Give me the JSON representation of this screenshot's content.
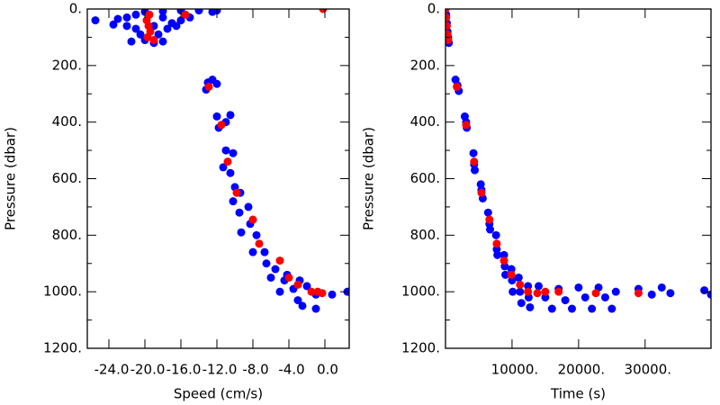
{
  "chart_data": [
    {
      "type": "scatter",
      "xlabel": "Speed (cm/s)",
      "ylabel": "Pressure (dbar)",
      "xlim": [
        -26.4,
        2.7
      ],
      "ylim": [
        1200,
        0
      ],
      "xticks": [
        {
          "value": -24,
          "label": "-24.0"
        },
        {
          "value": -20,
          "label": "-20.0"
        },
        {
          "value": -16,
          "label": "-16.0"
        },
        {
          "value": -12,
          "label": "-12.0"
        },
        {
          "value": -8,
          "label": "-8.0"
        },
        {
          "value": -4,
          "label": "-4.0"
        },
        {
          "value": 0,
          "label": "0.0"
        }
      ],
      "yticks": [
        {
          "value": 0,
          "label": "0."
        },
        {
          "value": 200,
          "label": "200."
        },
        {
          "value": 400,
          "label": "400."
        },
        {
          "value": 600,
          "label": "600."
        },
        {
          "value": 800,
          "label": "800."
        },
        {
          "value": 1000,
          "label": "1000."
        },
        {
          "value": 1200,
          "label": "1200."
        }
      ],
      "series": [
        {
          "color": "#0000ff",
          "x": [
            -25.5,
            -23,
            -22,
            -21,
            -20,
            -18,
            -16,
            -14,
            -12,
            -12.5,
            -23.5,
            -22,
            -21,
            -20.5,
            -20,
            -19,
            -18,
            -18.5,
            -17.5,
            -17,
            -16,
            -15,
            -16.5,
            -21.5,
            -19,
            -18,
            -13,
            -12.5,
            -13.2,
            -12,
            -12,
            -11,
            -10.5,
            -11.8,
            -11,
            -10.2,
            -11.3,
            -10.5,
            -10,
            -9.4,
            -10.2,
            -9.5,
            -8.5,
            -8.3,
            -9.3,
            -7.6,
            -8,
            -6.7,
            -6.5,
            -5.5,
            -6,
            -4.5,
            -5,
            -3.5,
            -2,
            -1,
            -3,
            -2.5,
            -1,
            0.8,
            2.5,
            -4.2,
            -2.8
          ],
          "values": [
            40,
            35,
            30,
            20,
            10,
            8,
            5,
            5,
            5,
            10,
            55,
            60,
            70,
            90,
            110,
            120,
            115,
            90,
            70,
            50,
            40,
            30,
            60,
            115,
            60,
            30,
            260,
            250,
            285,
            265,
            380,
            400,
            375,
            420,
            500,
            510,
            560,
            580,
            630,
            650,
            680,
            720,
            700,
            760,
            790,
            800,
            860,
            860,
            900,
            920,
            950,
            960,
            1000,
            990,
            980,
            1010,
            1030,
            1050,
            1060,
            1010,
            1000,
            940,
            960
          ]
        },
        {
          "color": "#ff0000",
          "x": [
            -19.5,
            -19.8,
            -19.6,
            -19.4,
            -19.7,
            -19,
            -15.5,
            -0.2,
            -12.9,
            -11.5,
            -10.8,
            -9.8,
            -8,
            -7.3,
            -5,
            -3,
            -1.5,
            -0.8,
            -0.3,
            -4
          ],
          "values": [
            20,
            40,
            60,
            80,
            100,
            110,
            20,
            0,
            275,
            410,
            540,
            650,
            745,
            830,
            890,
            975,
            1000,
            1000,
            1005,
            950
          ]
        }
      ]
    },
    {
      "type": "scatter",
      "xlabel": "Time (s)",
      "ylabel": "Pressure (dbar)",
      "xlim": [
        0,
        39900
      ],
      "ylim": [
        1200,
        0
      ],
      "xticks": [
        {
          "value": 10000,
          "label": "10000."
        },
        {
          "value": 20000,
          "label": "20000."
        },
        {
          "value": 30000,
          "label": "30000."
        }
      ],
      "yticks": [
        {
          "value": 0,
          "label": "0."
        },
        {
          "value": 200,
          "label": "200."
        },
        {
          "value": 400,
          "label": "400."
        },
        {
          "value": 600,
          "label": "600."
        },
        {
          "value": 800,
          "label": "800."
        },
        {
          "value": 1000,
          "label": "1000."
        },
        {
          "value": 1200,
          "label": "1200."
        }
      ],
      "series": [
        {
          "color": "#0000ff",
          "x": [
            0,
            100,
            200,
            300,
            400,
            500,
            1500,
            1800,
            2000,
            2900,
            3100,
            3200,
            4200,
            4300,
            4400,
            5300,
            5400,
            5600,
            6400,
            6600,
            6700,
            7600,
            7700,
            7800,
            8800,
            8900,
            9000,
            9900,
            10000,
            10100,
            11000,
            11200,
            11400,
            12400,
            12500,
            12700,
            14000,
            15000,
            16000,
            17000,
            18000,
            19000,
            20000,
            21000,
            22000,
            23000,
            24000,
            25000,
            25600,
            29000,
            31000,
            32500,
            33800,
            38900,
            39900
          ],
          "values": [
            0,
            20,
            50,
            80,
            100,
            120,
            250,
            270,
            290,
            380,
            400,
            420,
            510,
            550,
            570,
            620,
            640,
            670,
            720,
            760,
            780,
            800,
            850,
            870,
            870,
            910,
            940,
            920,
            960,
            1000,
            950,
            1000,
            1040,
            980,
            1020,
            1055,
            980,
            1020,
            1060,
            990,
            1030,
            1060,
            985,
            1020,
            1060,
            985,
            1020,
            1060,
            1000,
            990,
            1010,
            985,
            1005,
            995,
            1010
          ]
        },
        {
          "color": "#ff0000",
          "x": [
            0,
            100,
            200,
            300,
            400,
            1700,
            3100,
            4300,
            5400,
            6600,
            7700,
            8800,
            9900,
            11200,
            12400,
            13800,
            15000,
            17000,
            22600,
            29000
          ],
          "values": [
            0,
            30,
            60,
            90,
            110,
            275,
            410,
            540,
            650,
            745,
            830,
            890,
            940,
            975,
            1000,
            1005,
            1000,
            1000,
            1005,
            1005
          ]
        }
      ]
    }
  ]
}
